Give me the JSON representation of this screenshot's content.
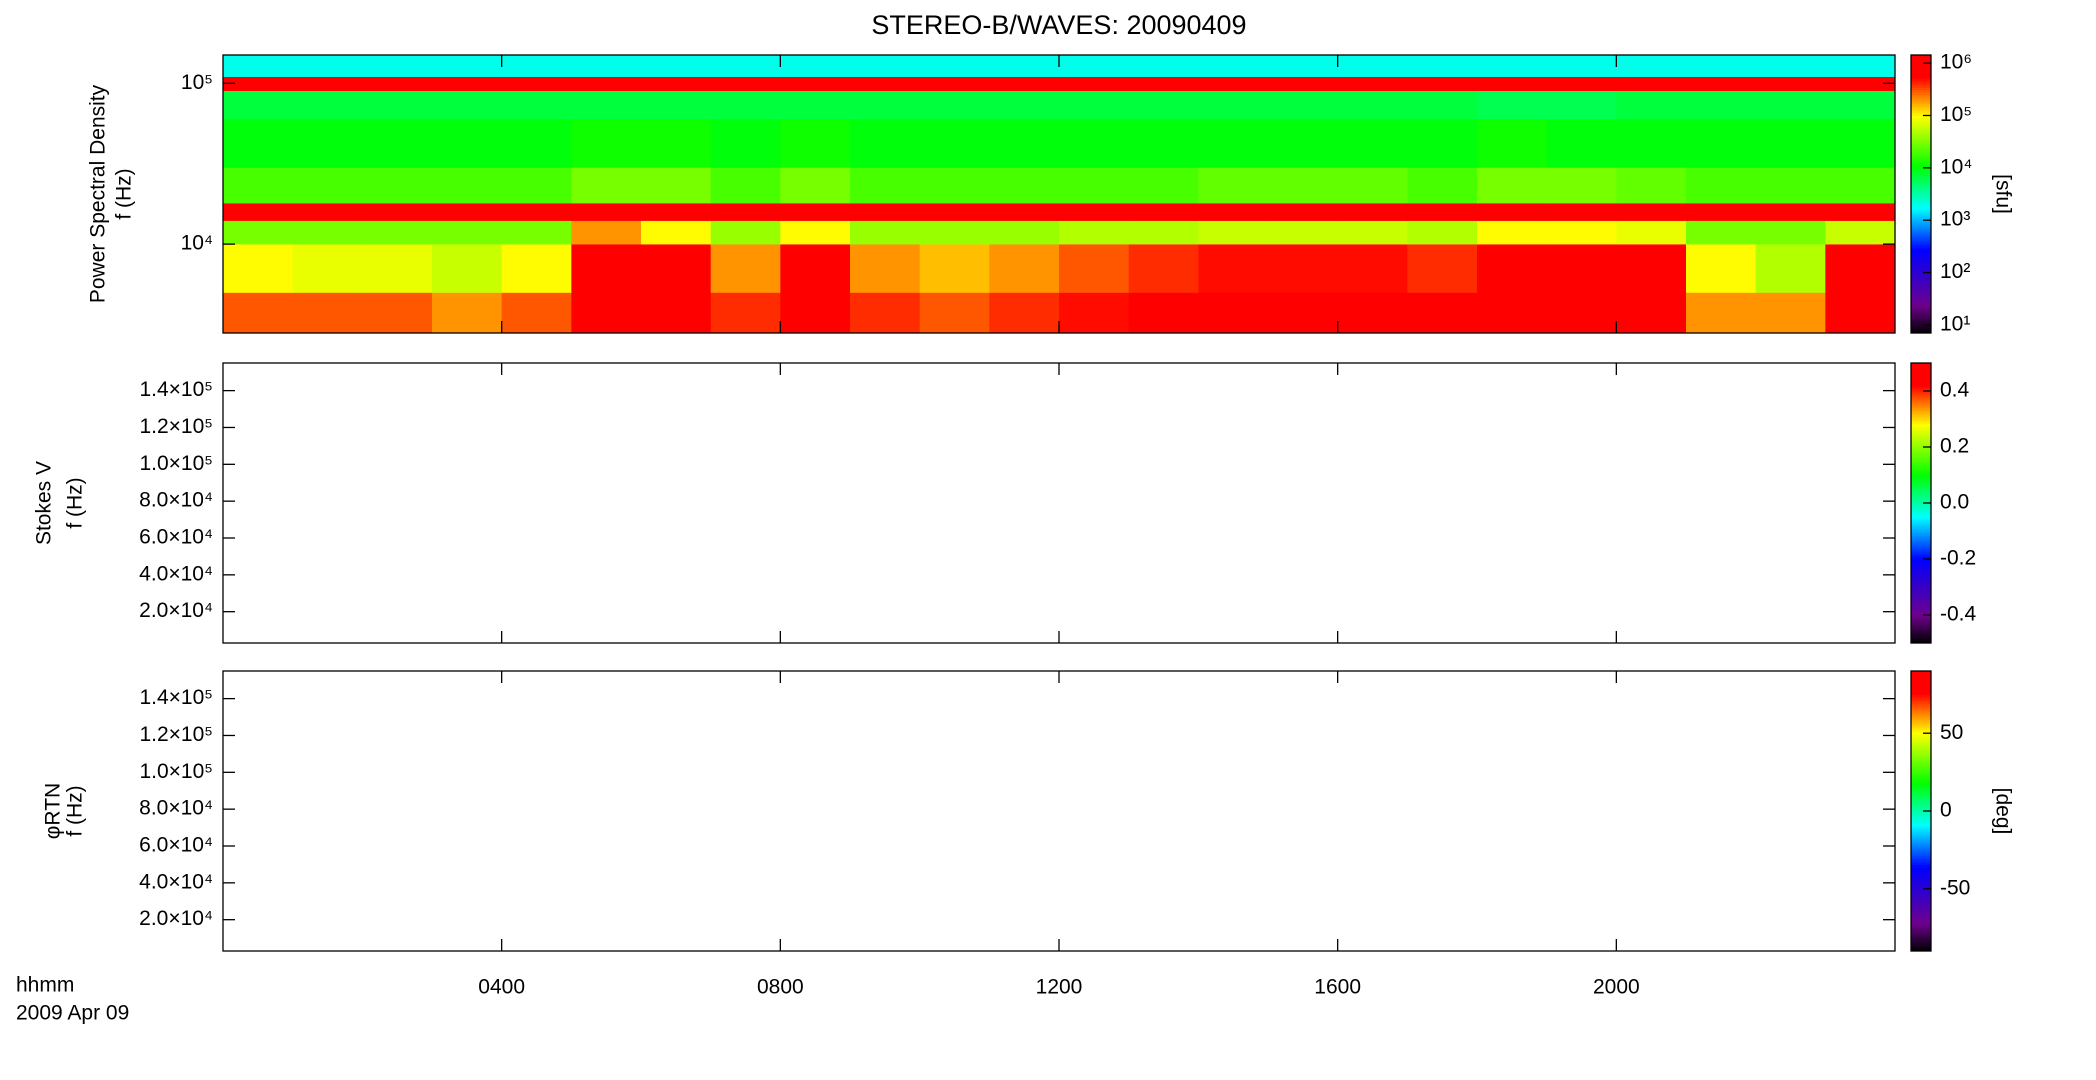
{
  "chart_data": [
    {
      "type": "heatmap",
      "title": "STEREO-B/WAVES: 20090409",
      "ylabel_lines": [
        "Power Spectral Density",
        "f (Hz)"
      ],
      "ylog": true,
      "ylim": [
        2800,
        150000
      ],
      "yticks": [
        {
          "value": 10000,
          "label": "10⁴"
        },
        {
          "value": 100000,
          "label": "10⁵"
        }
      ],
      "x_bins": [
        0,
        1,
        2,
        3,
        4,
        5,
        6,
        7,
        8,
        9,
        10,
        11,
        12,
        13,
        14,
        15,
        16,
        17,
        18,
        19,
        20,
        21,
        22,
        23,
        24
      ],
      "y_bins": [
        2800,
        5000,
        10000,
        14000,
        18000,
        30000,
        60000,
        90000,
        110000,
        150000
      ],
      "values": [
        [
          300000.0,
          300000.0,
          300000.0,
          200000.0,
          300000.0,
          1000000.0,
          1000000.0,
          400000.0,
          1000000.0,
          400000.0,
          300000.0,
          400000.0,
          500000.0,
          600000.0,
          800000.0,
          800000.0,
          800000.0,
          700000.0,
          1000000.0,
          1000000.0,
          1000000.0,
          200000.0,
          200000.0,
          1000000.0
        ],
        [
          100000.0,
          80000.0,
          80000.0,
          60000.0,
          100000.0,
          1000000.0,
          800000.0,
          200000.0,
          800000.0,
          200000.0,
          150000.0,
          200000.0,
          300000.0,
          400000.0,
          500000.0,
          500000.0,
          500000.0,
          400000.0,
          1000000.0,
          1000000.0,
          800000.0,
          100000.0,
          50000.0,
          800000.0
        ],
        [
          30000.0,
          30000.0,
          30000.0,
          30000.0,
          30000.0,
          200000.0,
          100000.0,
          40000.0,
          100000.0,
          40000.0,
          40000.0,
          40000.0,
          50000.0,
          50000.0,
          60000.0,
          60000.0,
          60000.0,
          50000.0,
          100000.0,
          100000.0,
          80000.0,
          30000.0,
          30000.0,
          60000.0
        ],
        [
          1000000.0,
          1000000.0,
          1000000.0,
          1000000.0,
          1000000.0,
          1000000.0,
          1000000.0,
          1000000.0,
          1000000.0,
          1000000.0,
          1000000.0,
          1000000.0,
          1000000.0,
          1000000.0,
          1000000.0,
          1000000.0,
          1000000.0,
          1000000.0,
          1000000.0,
          1000000.0,
          1000000.0,
          1000000.0,
          1000000.0,
          1000000.0
        ],
        [
          20000.0,
          20000.0,
          20000.0,
          20000.0,
          20000.0,
          30000.0,
          30000.0,
          20000.0,
          30000.0,
          20000.0,
          20000.0,
          20000.0,
          20000.0,
          20000.0,
          25000.0,
          25000.0,
          25000.0,
          20000.0,
          30000.0,
          30000.0,
          25000.0,
          20000.0,
          20000.0,
          20000.0
        ],
        [
          10000.0,
          10000.0,
          10000.0,
          10000.0,
          10000.0,
          12000.0,
          12000.0,
          10000.0,
          12000.0,
          10000.0,
          10000.0,
          10000.0,
          10000.0,
          10000.0,
          10000.0,
          10000.0,
          10000.0,
          10000.0,
          12000.0,
          10000.0,
          10000.0,
          10000.0,
          10000.0,
          10000.0
        ],
        [
          7000.0,
          7000.0,
          7000.0,
          7000.0,
          7000.0,
          7000.0,
          7000.0,
          7000.0,
          7000.0,
          7000.0,
          7000.0,
          7000.0,
          7000.0,
          7000.0,
          7000.0,
          7000.0,
          7000.0,
          7000.0,
          6000.0,
          6000.0,
          7000.0,
          7000.0,
          7000.0,
          7000.0
        ],
        [
          600000.0,
          600000.0,
          600000.0,
          600000.0,
          600000.0,
          600000.0,
          600000.0,
          600000.0,
          600000.0,
          600000.0,
          600000.0,
          600000.0,
          600000.0,
          600000.0,
          600000.0,
          600000.0,
          600000.0,
          600000.0,
          600000.0,
          600000.0,
          600000.0,
          600000.0,
          600000.0,
          600000.0
        ],
        [
          2000.0,
          2000.0,
          2000.0,
          2000.0,
          2000.0,
          2000.0,
          2000.0,
          2000.0,
          2000.0,
          2000.0,
          2000.0,
          2000.0,
          2000.0,
          2000.0,
          2000.0,
          2000.0,
          2000.0,
          2000.0,
          2000.0,
          2000.0,
          2000.0,
          2000.0,
          2000.0,
          2000.0
        ]
      ],
      "colorbar": {
        "label": "[sfu]",
        "log": true,
        "lim": [
          7,
          1430000
        ],
        "ticks": [
          {
            "value": 10,
            "label": "10¹"
          },
          {
            "value": 100,
            "label": "10²"
          },
          {
            "value": 1000,
            "label": "10³"
          },
          {
            "value": 10000,
            "label": "10⁴"
          },
          {
            "value": 100000,
            "label": "10⁵"
          },
          {
            "value": 1000000,
            "label": "10⁶"
          }
        ]
      }
    },
    {
      "type": "heatmap",
      "ylabel_lines": [
        "Stokes V",
        "f (Hz)"
      ],
      "ylog": false,
      "ylim": [
        3000,
        155000
      ],
      "yticks": [
        {
          "value": 20000,
          "label": "2.0×10⁴"
        },
        {
          "value": 40000,
          "label": "4.0×10⁴"
        },
        {
          "value": 60000,
          "label": "6.0×10⁴"
        },
        {
          "value": 80000,
          "label": "8.0×10⁴"
        },
        {
          "value": 100000,
          "label": "1.0×10⁵"
        },
        {
          "value": 120000,
          "label": "1.2×10⁵"
        },
        {
          "value": 140000,
          "label": "1.4×10⁵"
        }
      ],
      "colorbar": {
        "log": false,
        "lim": [
          -0.5,
          0.5
        ],
        "ticks": [
          -0.4,
          -0.2,
          {
            "value": 0,
            "label": "0.0"
          },
          0.2,
          0.4
        ]
      }
    },
    {
      "type": "heatmap",
      "ylabel_lines": [
        "φRTN",
        "f (Hz)"
      ],
      "ylog": false,
      "ylim": [
        3000,
        155000
      ],
      "yticks": [
        {
          "value": 20000,
          "label": "2.0×10⁴"
        },
        {
          "value": 40000,
          "label": "4.0×10⁴"
        },
        {
          "value": 60000,
          "label": "6.0×10⁴"
        },
        {
          "value": 80000,
          "label": "8.0×10⁴"
        },
        {
          "value": 100000,
          "label": "1.0×10⁵"
        },
        {
          "value": 120000,
          "label": "1.2×10⁵"
        },
        {
          "value": 140000,
          "label": "1.4×10⁵"
        }
      ],
      "colorbar": {
        "label": "[deg]",
        "log": false,
        "lim": [
          -90,
          90
        ],
        "ticks": [
          -50,
          0,
          50
        ]
      },
      "xlim": [
        0,
        24
      ],
      "xticks": [
        {
          "value": 4,
          "label": "0400"
        },
        {
          "value": 8,
          "label": "0800"
        },
        {
          "value": 12,
          "label": "1200"
        },
        {
          "value": 16,
          "label": "1600"
        },
        {
          "value": 20,
          "label": "2000"
        }
      ],
      "xlabel_lines": [
        "hhmm",
        "2009 Apr 09"
      ]
    }
  ]
}
